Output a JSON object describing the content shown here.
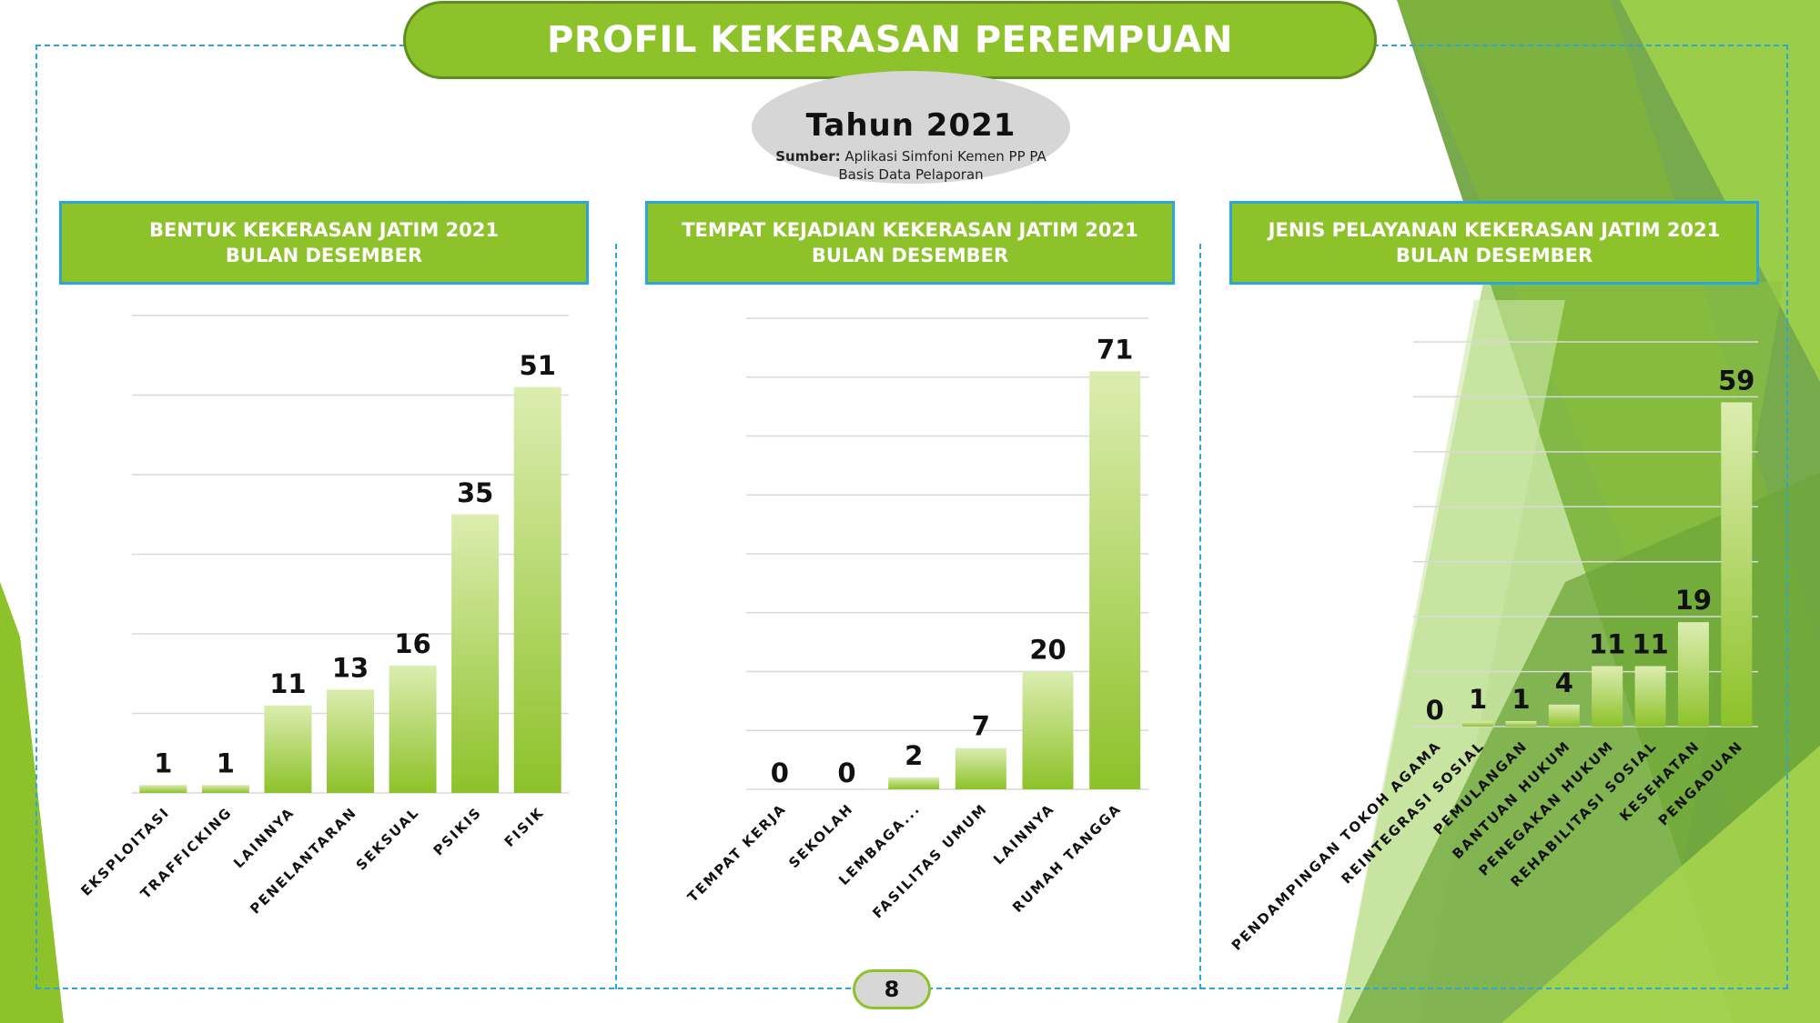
{
  "header": {
    "title": "PROFIL KEKERASAN PEREMPUAN",
    "year": "Tahun 2021",
    "source_label": "Sumber:",
    "source_text": " Aplikasi Simfoni Kemen PP PA",
    "source_line2": "Basis Data Pelaporan"
  },
  "panels": [
    {
      "title_line1": "BENTUK KEKERASAN JATIM 2021",
      "title_line2": "BULAN DESEMBER"
    },
    {
      "title_line1": "TEMPAT KEJADIAN KEKERASAN JATIM 2021",
      "title_line2": "BULAN DESEMBER"
    },
    {
      "title_line1": "JENIS PELAYANAN KEKERASAN JATIM 2021",
      "title_line2": "BULAN DESEMBER"
    }
  ],
  "page_number": "8",
  "colors": {
    "accent": "#8dc22a",
    "dashed_border": "#2aa6d8",
    "bar_top": "#dcedb0",
    "bar_bottom": "#8dc22a"
  },
  "chart_data": [
    {
      "type": "bar",
      "categories": [
        "EKSPLOITASI",
        "TRAFFICKING",
        "LAINNYA",
        "PENELANTARAN",
        "SEKSUAL",
        "PSIKIS",
        "FISIK"
      ],
      "values": [
        1,
        1,
        11,
        13,
        16,
        35,
        51
      ],
      "ylim": [
        0,
        60
      ],
      "grid": true
    },
    {
      "type": "bar",
      "categories": [
        "TEMPAT KERJA",
        "SEKOLAH",
        "LEMBAGA...",
        "FASILITAS UMUM",
        "LAINNYA",
        "RUMAH TANGGA"
      ],
      "values": [
        0,
        0,
        2,
        7,
        20,
        71
      ],
      "ylim": [
        0,
        80
      ],
      "grid": true
    },
    {
      "type": "bar",
      "categories": [
        "PENDAMPINGAN TOKOH AGAMA",
        "REINTEGRASI SOSIAL",
        "PEMULANGAN",
        "BANTUAN HUKUM",
        "PENEGAKAN HUKUM",
        "REHABILITASI SOSIAL",
        "KESEHATAN",
        "PENGADUAN"
      ],
      "values": [
        0,
        1,
        1,
        4,
        11,
        11,
        19,
        59
      ],
      "ylim": [
        0,
        70
      ],
      "grid": true
    }
  ]
}
